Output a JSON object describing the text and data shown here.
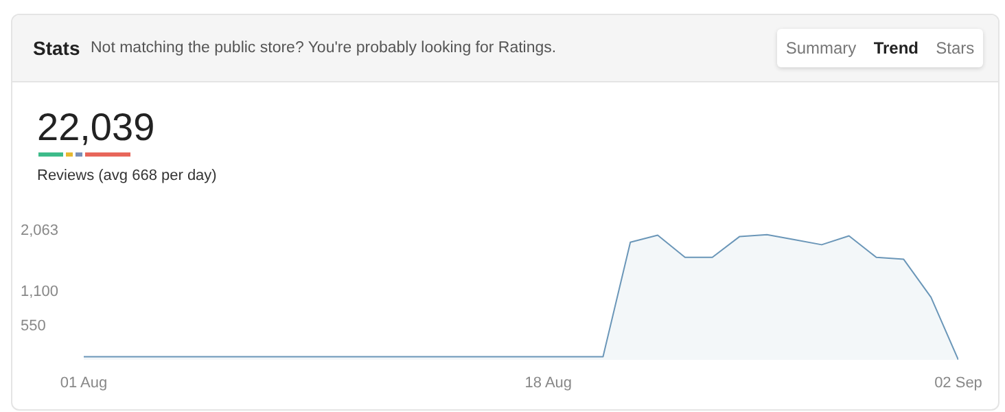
{
  "chart_data": {
    "type": "area",
    "title": "Stats",
    "subtitle": "Not matching the public store? You're probably looking for Ratings.",
    "annotations": [
      "22,039",
      "Reviews (avg 668 per day)",
      "Summary",
      "Trend",
      "Stars"
    ],
    "x": [
      "--08-01",
      "--08-02",
      "--08-03",
      "--08-04",
      "--08-05",
      "--08-06",
      "--08-07",
      "--08-08",
      "--08-09",
      "--08-10",
      "--08-11",
      "--08-12",
      "--08-13",
      "--08-14",
      "--08-15",
      "--08-16",
      "--08-17",
      "--08-18",
      "--08-19",
      "--08-20",
      "--08-21",
      "--08-22",
      "--08-23",
      "--08-24",
      "--08-25",
      "--08-26",
      "--08-27",
      "--08-28",
      "--08-29",
      "--08-30",
      "--08-31",
      "--09-01",
      "--09-02"
    ],
    "series": [
      {
        "color": "#6a96b8",
        "values": [
          50,
          50,
          50,
          50,
          50,
          50,
          50,
          50,
          50,
          50,
          50,
          50,
          50,
          50,
          50,
          50,
          50,
          50,
          50,
          50,
          1860,
          1970,
          1620,
          1620,
          1950,
          1980,
          1900,
          1820,
          1960,
          1620,
          1590,
          990,
          0
        ]
      }
    ],
    "ylim": [
      0,
      2063
    ],
    "yticks": [
      550,
      {
        "value": 1100,
        "label": "1,100"
      },
      {
        "value": 2063,
        "label": "2,063"
      }
    ],
    "xlim": [
      "--08-01",
      "--09-02"
    ],
    "xticks": [
      {
        "value": "--08-01",
        "label": "01 Aug"
      },
      {
        "value": "--08-18",
        "label": "18 Aug"
      },
      {
        "value": "--09-02",
        "label": "02 Sep"
      }
    ],
    "grid": false,
    "legend": false
  }
}
